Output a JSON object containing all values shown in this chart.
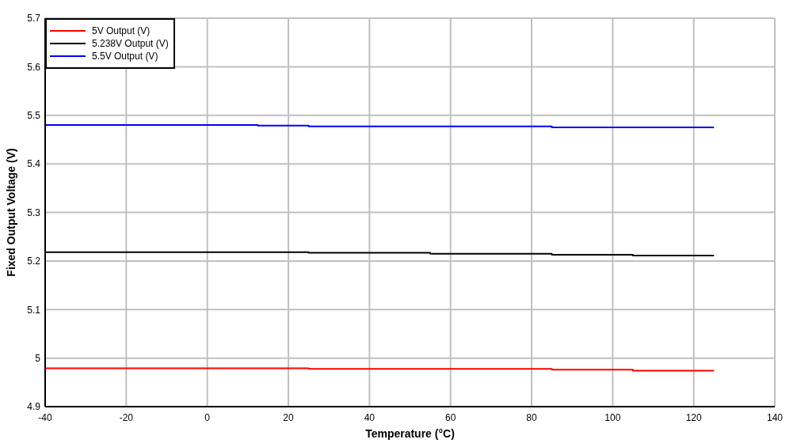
{
  "chart_data": {
    "type": "step",
    "xlabel": "Temperature (°C)",
    "ylabel": "Fixed Output Voltage (V)",
    "series": [
      {
        "name": "5V Output (V)",
        "color": "#ff0000",
        "x": [
          -40,
          25,
          85,
          105,
          125
        ],
        "values": [
          4.979,
          4.978,
          4.976,
          4.974,
          4.974
        ]
      },
      {
        "name": "5.238V Output (V)",
        "color": "#000000",
        "x": [
          -40,
          25,
          55,
          85,
          105,
          125
        ],
        "values": [
          5.218,
          5.217,
          5.215,
          5.213,
          5.211,
          5.211
        ]
      },
      {
        "name": "5.5V Output (V)",
        "color": "#0000ff",
        "x": [
          -40,
          12.5,
          25,
          85,
          125
        ],
        "values": [
          5.48,
          5.479,
          5.477,
          5.475,
          5.475
        ]
      }
    ],
    "xlim": [
      -40,
      140
    ],
    "xticks": [
      -40,
      -20,
      0,
      20,
      40,
      60,
      80,
      100,
      120,
      140
    ],
    "ylim": [
      4.9,
      5.7
    ],
    "yticks": [
      4.9,
      5,
      5.1,
      5.2,
      5.3,
      5.4,
      5.5,
      5.6,
      5.7
    ],
    "grid": true,
    "legend": "top left",
    "marker": "none"
  }
}
